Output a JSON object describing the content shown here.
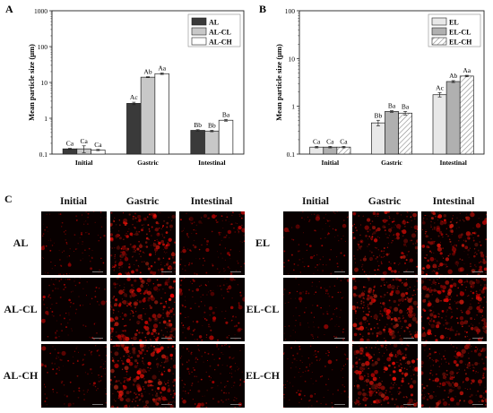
{
  "chart_data": [
    {
      "panel_label": "A",
      "type": "bar",
      "categories": [
        "Initial",
        "Gastric",
        "Intestinal"
      ],
      "ylabel": "Mean particle size (μm)",
      "yscale": "log",
      "ylim": [
        0.1,
        1000
      ],
      "yticks": [
        "0.1",
        "1",
        "10",
        "100",
        "1000"
      ],
      "legend_position": "top-right",
      "series": [
        {
          "name": "AL",
          "color": "#3a3a3a",
          "pattern": "solid",
          "values": [
            0.14,
            2.6,
            0.46
          ],
          "errors": [
            0.005,
            0.2,
            0.02
          ],
          "letters": [
            "Ca",
            "Ac",
            "Bb"
          ]
        },
        {
          "name": "AL-CL",
          "color": "#c8c8c8",
          "pattern": "solid",
          "values": [
            0.14,
            14.0,
            0.44
          ],
          "errors": [
            0.03,
            0.4,
            0.02
          ],
          "letters": [
            "Ca",
            "Ab",
            "Bb"
          ]
        },
        {
          "name": "AL-CH",
          "color": "#ffffff",
          "pattern": "solid",
          "values": [
            0.13,
            17.5,
            0.88
          ],
          "errors": [
            0.005,
            0.8,
            0.05
          ],
          "letters": [
            "Ca",
            "Aa",
            "Ba"
          ]
        }
      ]
    },
    {
      "panel_label": "B",
      "type": "bar",
      "categories": [
        "Initial",
        "Gastric",
        "Intestinal"
      ],
      "ylabel": "Mean particle size (μm)",
      "yscale": "log",
      "ylim": [
        0.1,
        100
      ],
      "yticks": [
        "0.1",
        "1",
        "10",
        "100"
      ],
      "legend_position": "top-right",
      "series": [
        {
          "name": "EL",
          "color": "#e8e8e8",
          "pattern": "solid",
          "values": [
            0.14,
            0.45,
            1.75
          ],
          "errors": [
            0.005,
            0.06,
            0.18
          ],
          "letters": [
            "Ca",
            "Bb",
            "Ac"
          ]
        },
        {
          "name": "EL-CL",
          "color": "#b0b0b0",
          "pattern": "solid",
          "values": [
            0.14,
            0.78,
            3.3
          ],
          "errors": [
            0.005,
            0.03,
            0.15
          ],
          "letters": [
            "Ca",
            "Ba",
            "Ab"
          ]
        },
        {
          "name": "EL-CH",
          "color": "#ffffff",
          "pattern": "hatch",
          "values": [
            0.14,
            0.72,
            4.3
          ],
          "errors": [
            0.005,
            0.06,
            0.15
          ],
          "letters": [
            "Ca",
            "Ba",
            "Aa"
          ]
        }
      ]
    }
  ],
  "micrographs": {
    "panel_label": "C",
    "left": {
      "columns": [
        "Initial",
        "Gastric",
        "Intestinal"
      ],
      "rows": [
        "AL",
        "AL-CL",
        "AL-CH"
      ],
      "density": [
        [
          0.15,
          0.75,
          0.3
        ],
        [
          0.15,
          0.8,
          0.25
        ],
        [
          0.2,
          0.85,
          0.3
        ]
      ]
    },
    "right": {
      "columns": [
        "Initial",
        "Gastric",
        "Intestinal"
      ],
      "rows": [
        "EL",
        "EL-CL",
        "EL-CH"
      ],
      "density": [
        [
          0.15,
          0.55,
          0.65
        ],
        [
          0.15,
          0.8,
          0.7
        ],
        [
          0.2,
          0.75,
          0.6
        ]
      ]
    }
  }
}
